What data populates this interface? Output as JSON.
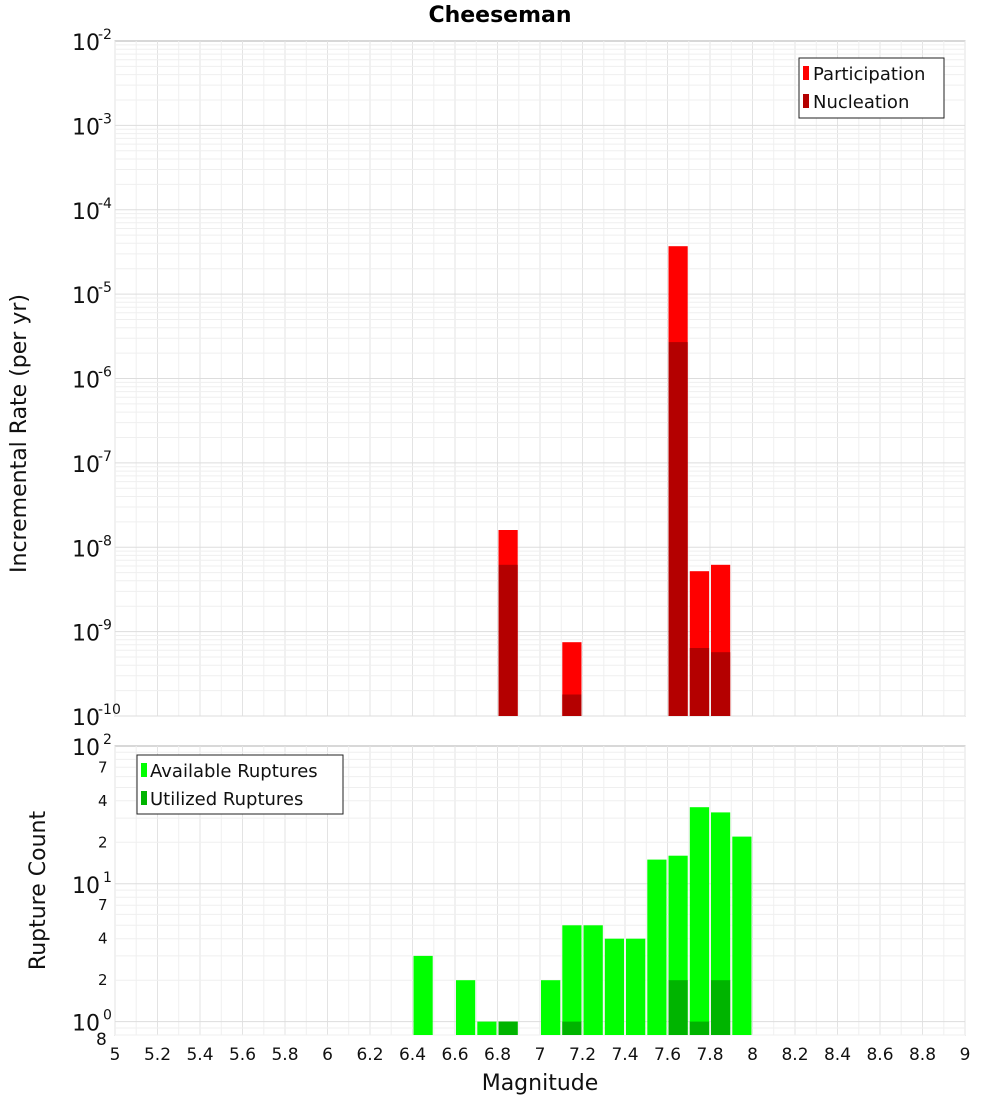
{
  "title": "Cheeseman",
  "colors": {
    "participation": "#ff0000",
    "nucleation": "#b40000",
    "available": "#00ff00",
    "utilized": "#00b400"
  },
  "chart_data": [
    {
      "type": "bar",
      "panel": "top",
      "ylabel": "Incremental Rate (per yr)",
      "yscale": "log",
      "ylim": [
        1e-10,
        0.01
      ],
      "xlim": [
        5,
        9
      ],
      "bin_width": 0.1,
      "y_ticks": [
        {
          "base": "10",
          "exp": "-2"
        },
        {
          "base": "10",
          "exp": "-3"
        },
        {
          "base": "10",
          "exp": "-4"
        },
        {
          "base": "10",
          "exp": "-5"
        },
        {
          "base": "10",
          "exp": "-6"
        },
        {
          "base": "10",
          "exp": "-7"
        },
        {
          "base": "10",
          "exp": "-8"
        },
        {
          "base": "10",
          "exp": "-9"
        },
        {
          "base": "10",
          "exp": "-10"
        }
      ],
      "legend": {
        "position": "top-right",
        "entries": [
          "Participation",
          "Nucleation"
        ]
      },
      "series": [
        {
          "name": "Participation",
          "x": [
            6.85,
            7.15,
            7.65,
            7.75,
            7.85
          ],
          "values": [
            1.6e-08,
            7.5e-10,
            3.7e-05,
            5.2e-09,
            6.2e-09
          ]
        },
        {
          "name": "Nucleation",
          "x": [
            6.85,
            7.15,
            7.65,
            7.75,
            7.85
          ],
          "values": [
            6.2e-09,
            1.8e-10,
            2.7e-06,
            6.4e-10,
            5.7e-10
          ]
        }
      ]
    },
    {
      "type": "bar",
      "panel": "bottom",
      "ylabel": "Rupture Count",
      "xlabel": "Magnitude",
      "yscale": "log",
      "ylim": [
        0.8,
        100
      ],
      "xlim": [
        5,
        9
      ],
      "bin_width": 0.1,
      "x_ticks": [
        "5",
        "5.2",
        "5.4",
        "5.6",
        "5.8",
        "6",
        "6.2",
        "6.4",
        "6.6",
        "6.8",
        "7",
        "7.2",
        "7.4",
        "7.6",
        "7.8",
        "8",
        "8.2",
        "8.4",
        "8.6",
        "8.8",
        "9"
      ],
      "y_major_ticks": [
        {
          "value": 100,
          "base": "10",
          "exp": "2"
        },
        {
          "value": 10,
          "base": "10",
          "exp": "1"
        },
        {
          "value": 1,
          "base": "10",
          "exp": "0"
        }
      ],
      "y_minor_ticks": [
        {
          "value": 70,
          "label": "7"
        },
        {
          "value": 40,
          "label": "4"
        },
        {
          "value": 20,
          "label": "2"
        },
        {
          "value": 7,
          "label": "7"
        },
        {
          "value": 4,
          "label": "4"
        },
        {
          "value": 2,
          "label": "2"
        },
        {
          "value": 0.8,
          "label": "8"
        }
      ],
      "legend": {
        "position": "top-left",
        "entries": [
          "Available Ruptures",
          "Utilized Ruptures"
        ]
      },
      "series": [
        {
          "name": "Available Ruptures",
          "x": [
            6.45,
            6.65,
            6.75,
            6.85,
            7.05,
            7.15,
            7.25,
            7.35,
            7.45,
            7.55,
            7.65,
            7.75,
            7.85,
            7.95
          ],
          "values": [
            3,
            2,
            1,
            1,
            2,
            5,
            5,
            4,
            4,
            15,
            16,
            36,
            33,
            22
          ]
        },
        {
          "name": "Utilized Ruptures",
          "x": [
            6.85,
            7.15,
            7.65,
            7.75,
            7.85
          ],
          "values": [
            1,
            1,
            2,
            1,
            2
          ]
        }
      ]
    }
  ]
}
